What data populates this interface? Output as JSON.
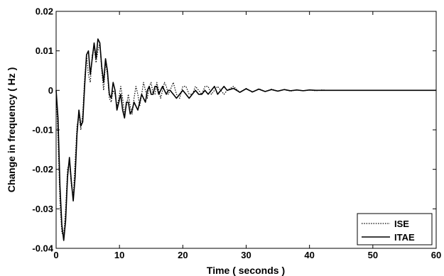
{
  "chart_data": {
    "type": "line",
    "title": "",
    "xlabel": "Time ( seconds )",
    "ylabel": "Change in frequency ( Hz )",
    "xlim": [
      0,
      60
    ],
    "ylim": [
      -0.04,
      0.02
    ],
    "xticks": [
      0,
      10,
      20,
      30,
      40,
      50,
      60
    ],
    "xtick_labels": [
      "0",
      "10",
      "20",
      "30",
      "40",
      "50",
      "60"
    ],
    "yticks": [
      0.02,
      0.01,
      0,
      -0.01,
      -0.02,
      -0.03,
      -0.04
    ],
    "ytick_labels": [
      "0.02",
      "0.01",
      "0",
      "-0.01",
      "-0.02",
      "-0.03",
      "-0.04"
    ],
    "grid": false,
    "legend_position": "bottom-right",
    "series": [
      {
        "name": "ISE",
        "style": "dotted",
        "color": "#000000",
        "x": [
          0,
          0.3,
          0.6,
          0.9,
          1.2,
          1.5,
          1.8,
          2.1,
          2.4,
          2.7,
          3.0,
          3.3,
          3.6,
          3.9,
          4.2,
          4.5,
          4.8,
          5.1,
          5.4,
          5.7,
          6.0,
          6.3,
          6.6,
          6.9,
          7.2,
          7.5,
          7.8,
          8.1,
          8.4,
          8.7,
          9.0,
          9.3,
          9.6,
          9.9,
          10.2,
          10.5,
          10.8,
          11.1,
          11.4,
          11.7,
          12.0,
          12.3,
          12.6,
          12.9,
          13.2,
          13.5,
          13.8,
          14.1,
          14.4,
          14.7,
          15.0,
          15.3,
          15.6,
          15.9,
          16.2,
          16.5,
          16.8,
          17.1,
          17.4,
          17.7,
          18.0,
          18.5,
          19.0,
          19.5,
          20.0,
          20.5,
          21.0,
          21.5,
          22.0,
          22.5,
          23.0,
          23.5,
          24.0,
          24.5,
          25.0,
          25.5,
          26.0,
          26.5,
          27.0,
          28.0,
          29.0,
          30.0,
          31.0,
          32.0,
          33.0,
          34.0,
          35.0,
          36.0,
          37.0,
          38.0,
          39.0,
          40.0,
          41.0,
          42.0,
          43.0,
          44.0,
          45.0,
          46.0,
          48.0,
          50.0,
          52.0,
          54.0,
          56.0,
          58.0,
          60.0
        ],
        "y": [
          0,
          -0.012,
          -0.028,
          -0.036,
          -0.037,
          -0.03,
          -0.02,
          -0.018,
          -0.024,
          -0.027,
          -0.018,
          -0.009,
          -0.006,
          -0.01,
          -0.006,
          0.003,
          0.009,
          0.004,
          0.002,
          0.009,
          0.011,
          0.007,
          0.01,
          0.012,
          0.005,
          0.0,
          0.007,
          0.004,
          -0.002,
          -0.003,
          0.0,
          -0.001,
          -0.004,
          -0.002,
          0.001,
          -0.002,
          -0.006,
          -0.004,
          -0.001,
          -0.004,
          -0.006,
          -0.002,
          0.001,
          -0.001,
          -0.004,
          -0.001,
          0.002,
          0.0,
          -0.002,
          0.001,
          0.002,
          -0.001,
          -0.001,
          0.002,
          0.0,
          -0.002,
          0.0,
          0.002,
          0.001,
          -0.001,
          0.0,
          0.002,
          -0.001,
          -0.002,
          0.001,
          0.001,
          -0.001,
          -0.001,
          0.001,
          0.0,
          -0.001,
          0.001,
          0.001,
          -0.001,
          0.0,
          0.001,
          0.0,
          -0.001,
          0.0,
          0.001,
          -0.0005,
          0.0005,
          -0.0005,
          0.0004,
          -0.0003,
          0.0003,
          -0.0002,
          0.0002,
          -0.0002,
          0.0001,
          -0.0001,
          0.0001,
          -0.0001,
          0.0001,
          0.0,
          0.0,
          0.0,
          0.0,
          0.0,
          0.0,
          0.0,
          0.0,
          0.0,
          0.0,
          0.0
        ]
      },
      {
        "name": "ITAE",
        "style": "solid",
        "color": "#000000",
        "x": [
          0,
          0.3,
          0.6,
          0.9,
          1.2,
          1.5,
          1.8,
          2.1,
          2.4,
          2.7,
          3.0,
          3.3,
          3.6,
          3.9,
          4.2,
          4.5,
          4.8,
          5.1,
          5.4,
          5.7,
          6.0,
          6.3,
          6.6,
          6.9,
          7.2,
          7.5,
          7.8,
          8.1,
          8.4,
          8.7,
          9.0,
          9.3,
          9.6,
          9.9,
          10.2,
          10.5,
          10.8,
          11.1,
          11.4,
          11.7,
          12.0,
          12.3,
          12.6,
          12.9,
          13.2,
          13.5,
          13.8,
          14.1,
          14.4,
          14.7,
          15.0,
          15.3,
          15.6,
          15.9,
          16.2,
          16.5,
          16.8,
          17.1,
          17.4,
          17.7,
          18.0,
          18.5,
          19.0,
          19.5,
          20.0,
          20.5,
          21.0,
          21.5,
          22.0,
          22.5,
          23.0,
          23.5,
          24.0,
          24.5,
          25.0,
          25.5,
          26.0,
          26.5,
          27.0,
          28.0,
          29.0,
          30.0,
          31.0,
          32.0,
          33.0,
          34.0,
          35.0,
          36.0,
          37.0,
          38.0,
          39.0,
          40.0,
          41.0,
          42.0,
          43.0,
          44.0,
          45.0,
          46.0,
          48.0,
          50.0,
          52.0,
          54.0,
          56.0,
          58.0,
          60.0
        ],
        "y": [
          0,
          -0.007,
          -0.024,
          -0.034,
          -0.038,
          -0.033,
          -0.022,
          -0.017,
          -0.023,
          -0.028,
          -0.022,
          -0.011,
          -0.005,
          -0.009,
          -0.008,
          0.001,
          0.009,
          0.01,
          0.004,
          0.008,
          0.012,
          0.008,
          0.013,
          0.012,
          0.006,
          0.002,
          0.008,
          0.005,
          -0.001,
          -0.002,
          0.002,
          0.0,
          -0.005,
          -0.003,
          -0.001,
          -0.005,
          -0.007,
          -0.003,
          -0.003,
          -0.006,
          -0.005,
          -0.003,
          -0.004,
          -0.005,
          -0.003,
          -0.001,
          -0.002,
          -0.003,
          0.0,
          0.001,
          -0.001,
          -0.001,
          0.001,
          0.001,
          -0.001,
          0.0,
          0.001,
          0.0,
          -0.001,
          0.0,
          0.0,
          -0.001,
          -0.002,
          -0.001,
          0.0,
          -0.001,
          -0.002,
          -0.001,
          0.0,
          -0.001,
          -0.001,
          0.0,
          -0.001,
          0.0,
          0.001,
          -0.001,
          0.0,
          0.001,
          0.0,
          0.0005,
          -0.0005,
          0.0004,
          -0.0004,
          0.0003,
          -0.0003,
          0.0002,
          -0.0002,
          0.0002,
          -0.0001,
          0.0001,
          -0.0001,
          0.0001,
          0.0,
          0.0,
          0.0,
          0.0,
          0.0,
          0.0,
          0.0,
          0.0,
          0.0,
          0.0,
          0.0,
          0.0,
          0.0
        ]
      }
    ]
  }
}
